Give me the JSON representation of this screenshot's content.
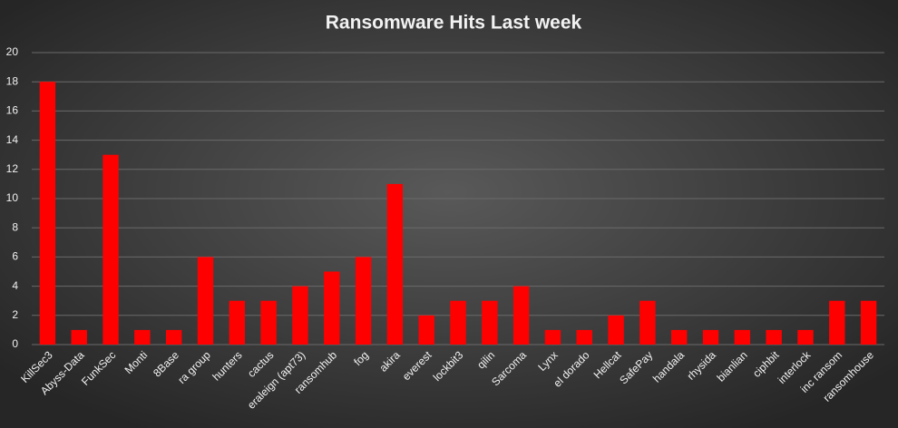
{
  "chart_data": {
    "type": "bar",
    "title": "Ransomware Hits Last week",
    "categories": [
      "KillSec3",
      "Abyss-Data",
      "FunkSec",
      "Monti",
      "8Base",
      "ra group",
      "hunters",
      "cactus",
      "eraleign (apt73)",
      "ransomhub",
      "fog",
      "akira",
      "everest",
      "lockbit3",
      "qilin",
      "Sarcoma",
      "Lynx",
      "el dorado",
      "Hellcat",
      "SafePay",
      "handala",
      "rhysida",
      "bianlian",
      "ciphbit",
      "interlock",
      "inc ransom",
      "ransomhouse"
    ],
    "values": [
      18,
      1,
      13,
      1,
      1,
      6,
      3,
      3,
      4,
      5,
      6,
      11,
      2,
      3,
      3,
      4,
      1,
      1,
      2,
      3,
      1,
      1,
      1,
      1,
      1,
      3,
      3
    ],
    "color": "#ff0000",
    "ylim": [
      0,
      20
    ],
    "yticks": [
      0,
      2,
      4,
      6,
      8,
      10,
      12,
      14,
      16,
      18,
      20
    ],
    "grid": true
  }
}
